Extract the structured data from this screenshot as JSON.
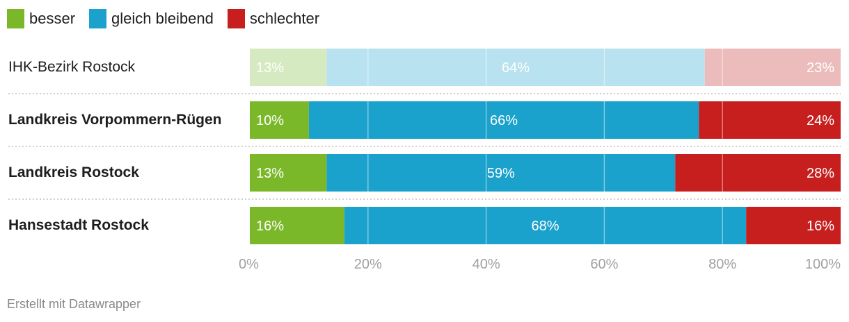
{
  "chart_data": {
    "type": "bar",
    "orientation": "horizontal-stacked",
    "categories": [
      "IHK-Bezirk Rostock",
      "Landkreis Vorpommern-Rügen",
      "Landkreis Rostock",
      "Hansestadt Rostock"
    ],
    "category_bold": [
      false,
      true,
      true,
      true
    ],
    "category_faded": [
      true,
      false,
      false,
      false
    ],
    "series": [
      {
        "name": "besser",
        "color": "#7ab82a",
        "faded_color": "#d5eac1",
        "values": [
          13,
          10,
          13,
          16
        ]
      },
      {
        "name": "gleich bleibend",
        "color": "#1aa1cc",
        "faded_color": "#b8e2ef",
        "values": [
          64,
          66,
          59,
          68
        ]
      },
      {
        "name": "schlechter",
        "color": "#c71e1e",
        "faded_color": "#ecbcbc",
        "values": [
          23,
          24,
          28,
          16
        ]
      }
    ],
    "xlim": [
      0,
      100
    ],
    "xticks": [
      "0%",
      "20%",
      "40%",
      "60%",
      "80%",
      "100%"
    ],
    "xtick_values": [
      0,
      20,
      40,
      60,
      80,
      100
    ],
    "grid": true,
    "legend": "top-left"
  },
  "footer": "Erstellt mit Datawrapper"
}
